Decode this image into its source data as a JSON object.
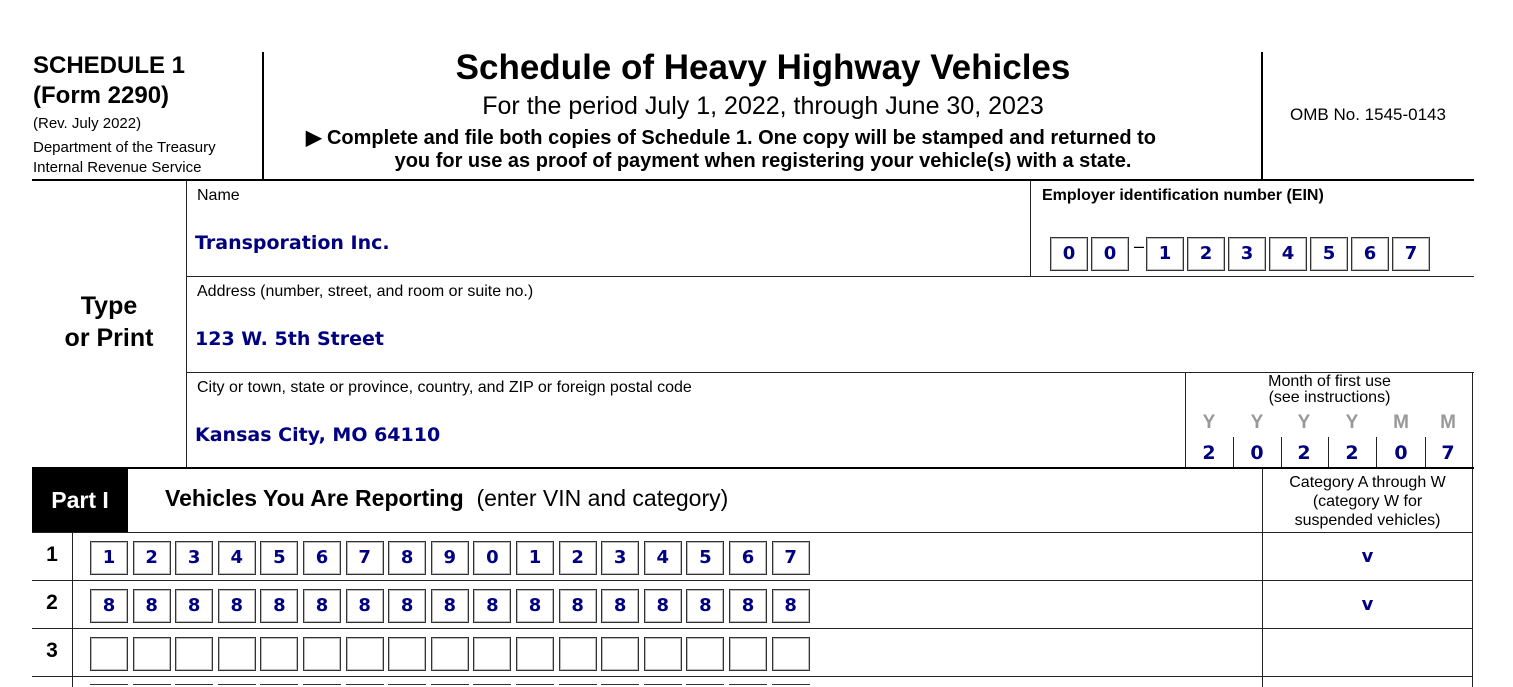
{
  "header": {
    "schedule": "SCHEDULE 1",
    "form": "(Form 2290)",
    "rev": "(Rev. July 2022)",
    "dept": "Department of the Treasury",
    "irs": "Internal Revenue Service",
    "title": "Schedule of Heavy Highway Vehicles",
    "period": "For the period July 1, 2022, through June 30, 2023",
    "instruction_line1": "Complete and file both copies of Schedule 1. One copy will be stamped and returned to",
    "instruction_line2": "you for use as proof of payment when registering your vehicle(s) with a state.",
    "omb": "OMB No. 1545-0143"
  },
  "side_label": {
    "line1": "Type",
    "line2": "or Print"
  },
  "name": {
    "label": "Name",
    "value": "Transporation Inc."
  },
  "ein": {
    "label": "Employer identification number (EIN)",
    "digits": [
      "0",
      "0",
      "1",
      "2",
      "3",
      "4",
      "5",
      "6",
      "7"
    ],
    "dash": "–"
  },
  "address": {
    "label": "Address (number, street, and room or suite no.)",
    "value": "123 W. 5th Street"
  },
  "city": {
    "label": "City or town, state or province, country, and ZIP or foreign postal code",
    "value": "Kansas City, MO 64110"
  },
  "month_first_use": {
    "label1": "Month of first use",
    "label2": "(see instructions)",
    "placeholders": [
      "Y",
      "Y",
      "Y",
      "Y",
      "M",
      "M"
    ],
    "digits": [
      "2",
      "0",
      "2",
      "2",
      "0",
      "7"
    ]
  },
  "part1": {
    "badge": "Part I",
    "title": "Vehicles You Are Reporting",
    "subtitle": "(enter VIN and category)",
    "category_header": [
      "Category A through W",
      "(category W for",
      "suspended vehicles)"
    ]
  },
  "vehicles": [
    {
      "num": "1",
      "vin": [
        "1",
        "2",
        "3",
        "4",
        "5",
        "6",
        "7",
        "8",
        "9",
        "0",
        "1",
        "2",
        "3",
        "4",
        "5",
        "6",
        "7"
      ],
      "category": "v"
    },
    {
      "num": "2",
      "vin": [
        "8",
        "8",
        "8",
        "8",
        "8",
        "8",
        "8",
        "8",
        "8",
        "8",
        "8",
        "8",
        "8",
        "8",
        "8",
        "8",
        "8"
      ],
      "category": "v"
    },
    {
      "num": "3",
      "vin": [
        "",
        "",
        "",
        "",
        "",
        "",
        "",
        "",
        "",
        "",
        "",
        "",
        "",
        "",
        "",
        "",
        ""
      ],
      "category": ""
    }
  ],
  "colors": {
    "fill_text": "#000080",
    "placeholder": "#999999"
  }
}
